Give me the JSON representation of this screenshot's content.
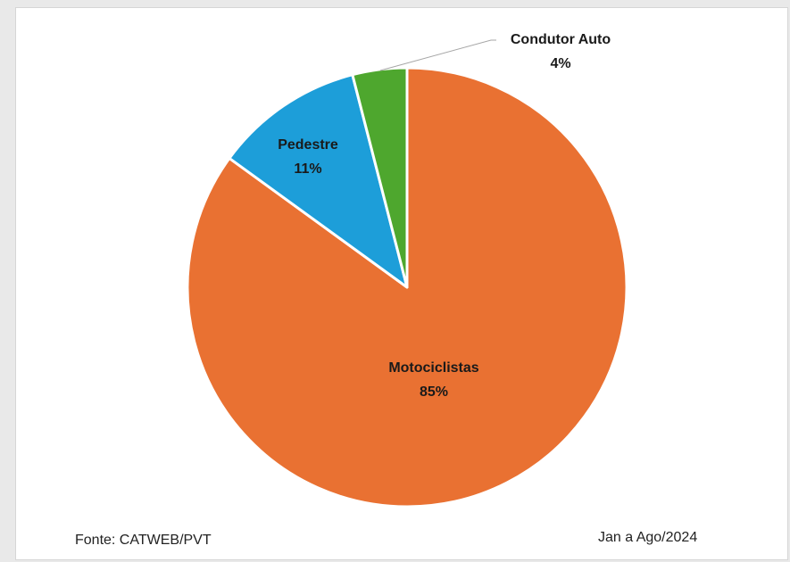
{
  "chart_data": {
    "type": "pie",
    "title": "",
    "start": "top, clockwise",
    "slices": [
      {
        "label": "Motociclistas",
        "value": 85,
        "display": "85%",
        "color": "#E97132"
      },
      {
        "label": "Pedestre",
        "value": 11,
        "display": "11%",
        "color": "#1D9ED9"
      },
      {
        "label": "Condutor Auto",
        "value": 4,
        "display": "4%",
        "color": "#4EA72E"
      }
    ],
    "slice_border_color": "#ffffff"
  },
  "footer": {
    "source": "Fonte: CATWEB/PVT",
    "period": "Jan a Ago/2024"
  }
}
